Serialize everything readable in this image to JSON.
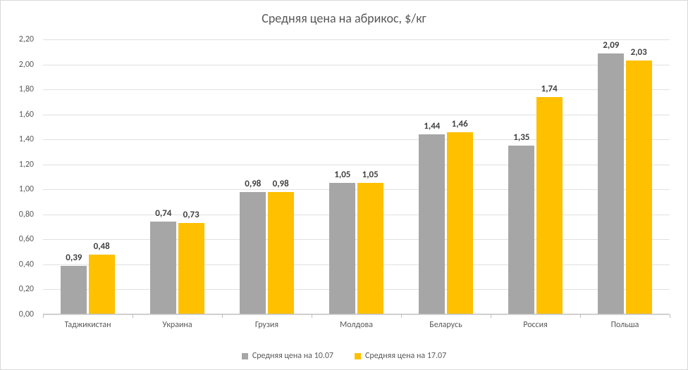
{
  "chart": {
    "type": "bar",
    "title": "Средняя цена на абрикос, $/кг",
    "title_fontsize": 18,
    "title_color": "#595959",
    "background_color": "#ffffff",
    "border_color": "#d9d9d9",
    "grid_color": "#e0e0e0",
    "axis_line_color": "#bfbfbf",
    "label_color": "#595959",
    "label_fontsize": 12,
    "data_label_fontsize": 13,
    "data_label_color": "#404040",
    "ylim": [
      0.0,
      2.2
    ],
    "ytick_step": 0.2,
    "decimal_separator": ",",
    "categories": [
      "Таджикистан",
      "Украина",
      "Грузия",
      "Молдова",
      "Беларусь",
      "Россия",
      "Польша"
    ],
    "series": [
      {
        "name": "Средняя цена на 10.07",
        "color": "#a6a6a6",
        "values": [
          0.39,
          0.74,
          0.98,
          1.05,
          1.44,
          1.35,
          2.09
        ]
      },
      {
        "name": "Средняя цена на 17.07",
        "color": "#ffc000",
        "values": [
          0.48,
          0.73,
          0.98,
          1.05,
          1.46,
          1.74,
          2.03
        ]
      }
    ],
    "bar_width": 0.29,
    "bar_gap": 0.02
  }
}
